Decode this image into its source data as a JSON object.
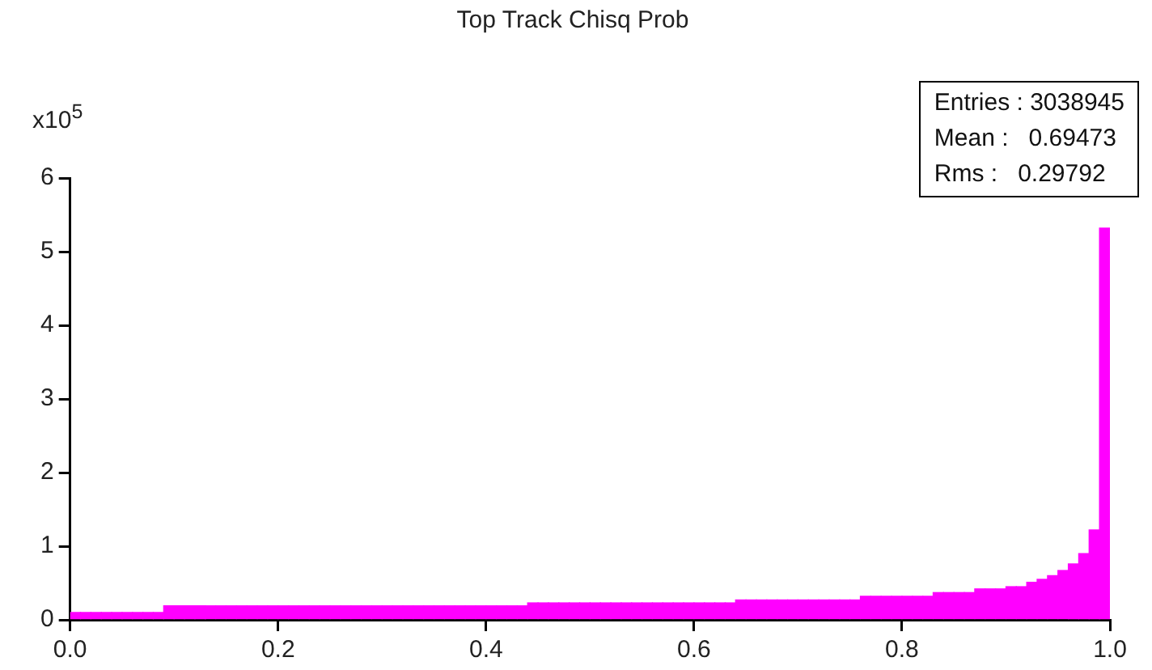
{
  "chart_data": {
    "type": "histogram",
    "title": "Top Track Chisq Prob",
    "ylabel": "x10$^{5}$",
    "annotations": [
      "Entries : 3038945",
      "Mean :   0.69473",
      "Rms :   0.29792"
    ],
    "bins": [
      0,
      0.01,
      0.02,
      0.03,
      0.04,
      0.05,
      0.06,
      0.07,
      0.08,
      0.09,
      0.1,
      0.11,
      0.12,
      0.13,
      0.14,
      0.15,
      0.16,
      0.17,
      0.18,
      0.19,
      0.2,
      0.21,
      0.22,
      0.23,
      0.24,
      0.25,
      0.26,
      0.27,
      0.28,
      0.29,
      0.3,
      0.31,
      0.32,
      0.33,
      0.34,
      0.35,
      0.36,
      0.37,
      0.38,
      0.39,
      0.4,
      0.41,
      0.42,
      0.43,
      0.44,
      0.45,
      0.46,
      0.47,
      0.48,
      0.49,
      0.5,
      0.51,
      0.52,
      0.53,
      0.54,
      0.55,
      0.56,
      0.57,
      0.58,
      0.59,
      0.6,
      0.61,
      0.62,
      0.63,
      0.64,
      0.65,
      0.66,
      0.67,
      0.68,
      0.69,
      0.7,
      0.71,
      0.72,
      0.73,
      0.74,
      0.75,
      0.76,
      0.77,
      0.78,
      0.79,
      0.8,
      0.81,
      0.82,
      0.83,
      0.84,
      0.85,
      0.86,
      0.87,
      0.88,
      0.89,
      0.9,
      0.91,
      0.92,
      0.93,
      0.94,
      0.95,
      0.96,
      0.97,
      0.98,
      0.99,
      1
    ],
    "values": [
      0.1,
      0.1,
      0.1,
      0.1,
      0.1,
      0.1,
      0.1,
      0.1,
      0.1,
      0.19,
      0.19,
      0.19,
      0.19,
      0.19,
      0.19,
      0.19,
      0.19,
      0.19,
      0.19,
      0.19,
      0.19,
      0.19,
      0.19,
      0.19,
      0.19,
      0.19,
      0.19,
      0.19,
      0.19,
      0.19,
      0.19,
      0.19,
      0.19,
      0.19,
      0.19,
      0.19,
      0.19,
      0.19,
      0.19,
      0.19,
      0.19,
      0.19,
      0.19,
      0.19,
      0.23,
      0.23,
      0.23,
      0.23,
      0.23,
      0.23,
      0.23,
      0.23,
      0.23,
      0.23,
      0.23,
      0.23,
      0.23,
      0.23,
      0.23,
      0.23,
      0.23,
      0.23,
      0.23,
      0.23,
      0.27,
      0.27,
      0.27,
      0.27,
      0.27,
      0.27,
      0.27,
      0.27,
      0.27,
      0.27,
      0.27,
      0.27,
      0.32,
      0.32,
      0.32,
      0.32,
      0.32,
      0.32,
      0.32,
      0.37,
      0.37,
      0.37,
      0.37,
      0.42,
      0.42,
      0.42,
      0.45,
      0.45,
      0.51,
      0.55,
      0.6,
      0.67,
      0.76,
      0.9,
      1.22,
      5.32
    ],
    "color": "#ff00ff",
    "xlim": [
      0,
      1
    ],
    "xticks": [
      {
        "value": 0,
        "label": "0.0"
      },
      {
        "value": 0.2,
        "label": "0.2"
      },
      {
        "value": 0.4,
        "label": "0.4"
      },
      {
        "value": 0.6,
        "label": "0.6"
      },
      {
        "value": 0.8,
        "label": "0.8"
      },
      {
        "value": 1,
        "label": "1.0"
      }
    ],
    "ylim": [
      0,
      6
    ],
    "yticks": [
      0,
      1,
      2,
      3,
      4,
      5,
      6
    ]
  }
}
